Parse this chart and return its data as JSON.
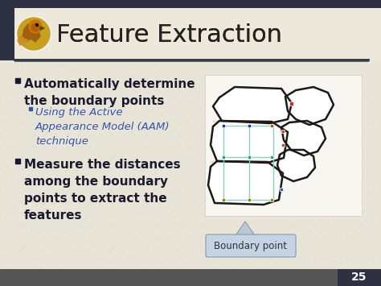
{
  "bg_color": "#e8e4d8",
  "title_text": "Feature Extraction",
  "title_color": "#222222",
  "title_fontsize": 22,
  "header_bar_color": "#2d3142",
  "bullet1_text": "Automatically determine\nthe boundary points",
  "bullet1_color": "#1a1a2e",
  "bullet1_fontsize": 11,
  "subbullet_text": "Using the Active\nAppearance Model (AAM)\ntechnique",
  "subbullet_color": "#3355aa",
  "subbullet_fontsize": 9.5,
  "bullet2_text": "Measure the distances\namong the boundary\npoints to extract the\nfeatures",
  "bullet2_color": "#1a1a2e",
  "bullet2_fontsize": 11,
  "boundary_label": "Boundary point",
  "boundary_label_color": "#333333",
  "page_num": "25",
  "page_num_color": "#ffffff",
  "page_num_bg": "#2d3142",
  "accent_color": "#c8a020",
  "title_bg_color": "#ede8da",
  "content_bg_color": "#e8e4d8"
}
